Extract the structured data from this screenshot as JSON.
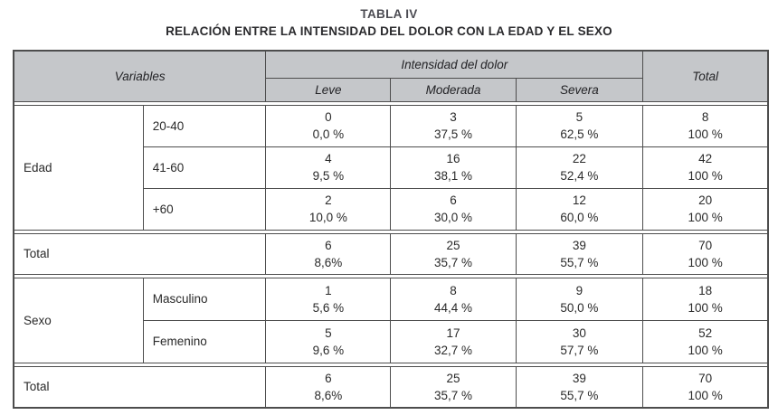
{
  "title": "TABLA IV",
  "subtitle": "RELACIÓN ENTRE LA INTENSIDAD DEL DOLOR CON LA EDAD Y EL SEXO",
  "colors": {
    "header_bg": "#c5c7ca",
    "border": "#4d4d4d",
    "text": "#2a2a2a"
  },
  "header": {
    "variables": "Variables",
    "intensity": "Intensidad del dolor",
    "levels": [
      "Leve",
      "Moderada",
      "Severa"
    ],
    "total": "Total"
  },
  "edad": {
    "label": "Edad",
    "rows": [
      {
        "category": "20-40",
        "cells": [
          [
            "0",
            "0,0 %"
          ],
          [
            "3",
            "37,5 %"
          ],
          [
            "5",
            "62,5 %"
          ],
          [
            "8",
            "100 %"
          ]
        ]
      },
      {
        "category": "41-60",
        "cells": [
          [
            "4",
            "9,5 %"
          ],
          [
            "16",
            "38,1 %"
          ],
          [
            "22",
            "52,4 %"
          ],
          [
            "42",
            "100 %"
          ]
        ]
      },
      {
        "category": "+60",
        "cells": [
          [
            "2",
            "10,0 %"
          ],
          [
            "6",
            "30,0 %"
          ],
          [
            "12",
            "60,0 %"
          ],
          [
            "20",
            "100 %"
          ]
        ]
      }
    ]
  },
  "total1": {
    "label": "Total",
    "cells": [
      [
        "6",
        "8,6%"
      ],
      [
        "25",
        "35,7 %"
      ],
      [
        "39",
        "55,7 %"
      ],
      [
        "70",
        "100 %"
      ]
    ]
  },
  "sexo": {
    "label": "Sexo",
    "rows": [
      {
        "category": "Masculino",
        "cells": [
          [
            "1",
            "5,6 %"
          ],
          [
            "8",
            "44,4 %"
          ],
          [
            "9",
            "50,0 %"
          ],
          [
            "18",
            "100 %"
          ]
        ]
      },
      {
        "category": "Femenino",
        "cells": [
          [
            "5",
            "9,6 %"
          ],
          [
            "17",
            "32,7 %"
          ],
          [
            "30",
            "57,7 %"
          ],
          [
            "52",
            "100 %"
          ]
        ]
      }
    ]
  },
  "total2": {
    "label": "Total",
    "cells": [
      [
        "6",
        "8,6%"
      ],
      [
        "25",
        "35,7 %"
      ],
      [
        "39",
        "55,7 %"
      ],
      [
        "70",
        "100 %"
      ]
    ]
  }
}
